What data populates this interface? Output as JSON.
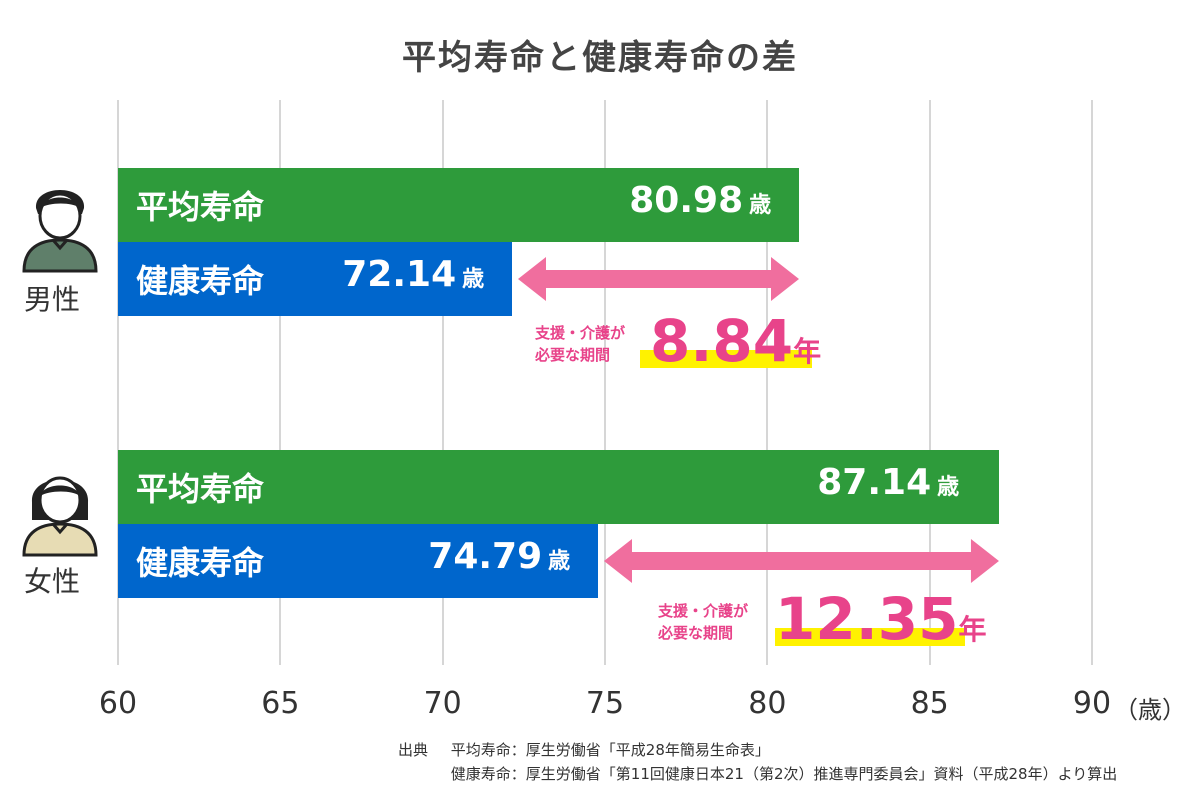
{
  "chart_data": {
    "type": "bar",
    "title": "平均寿命と健康寿命の差",
    "x_axis": {
      "min": 60,
      "max": 90,
      "ticks": [
        "60",
        "65",
        "70",
        "75",
        "80",
        "85",
        "90"
      ],
      "unit": "（歳）"
    },
    "groups": [
      {
        "key": "male",
        "label": "男性",
        "bars": [
          {
            "name": "平均寿命",
            "value": 80.98,
            "display": "80.98",
            "unit": "歳",
            "color": "#2e9b3b"
          },
          {
            "name": "健康寿命",
            "value": 72.14,
            "display": "72.14",
            "unit": "歳",
            "color": "#0066cc"
          }
        ],
        "gap": {
          "label_line1": "支援・介護が",
          "label_line2": "必要な期間",
          "value": 8.84,
          "display": "8.84",
          "unit": "年"
        }
      },
      {
        "key": "female",
        "label": "女性",
        "bars": [
          {
            "name": "平均寿命",
            "value": 87.14,
            "display": "87.14",
            "unit": "歳",
            "color": "#2e9b3b"
          },
          {
            "name": "健康寿命",
            "value": 74.79,
            "display": "74.79",
            "unit": "歳",
            "color": "#0066cc"
          }
        ],
        "gap": {
          "label_line1": "支援・介護が",
          "label_line2": "必要な期間",
          "value": 12.35,
          "display": "12.35",
          "unit": "年"
        }
      }
    ],
    "source": {
      "heading": "出典",
      "lines": [
        "平均寿命：厚生労働省「平成28年簡易生命表」",
        "健康寿命：厚生労働省「第11回健康日本21（第2次）推進専門委員会」資料（平成28年）より算出"
      ]
    },
    "grid": true,
    "colors": {
      "average": "#2e9b3b",
      "healthy": "#0066cc",
      "gap_arrow": "#f06e9e",
      "gap_text": "#e8438a",
      "highlight": "#fff200"
    },
    "icons": [
      "male-person-icon",
      "female-person-icon"
    ]
  }
}
